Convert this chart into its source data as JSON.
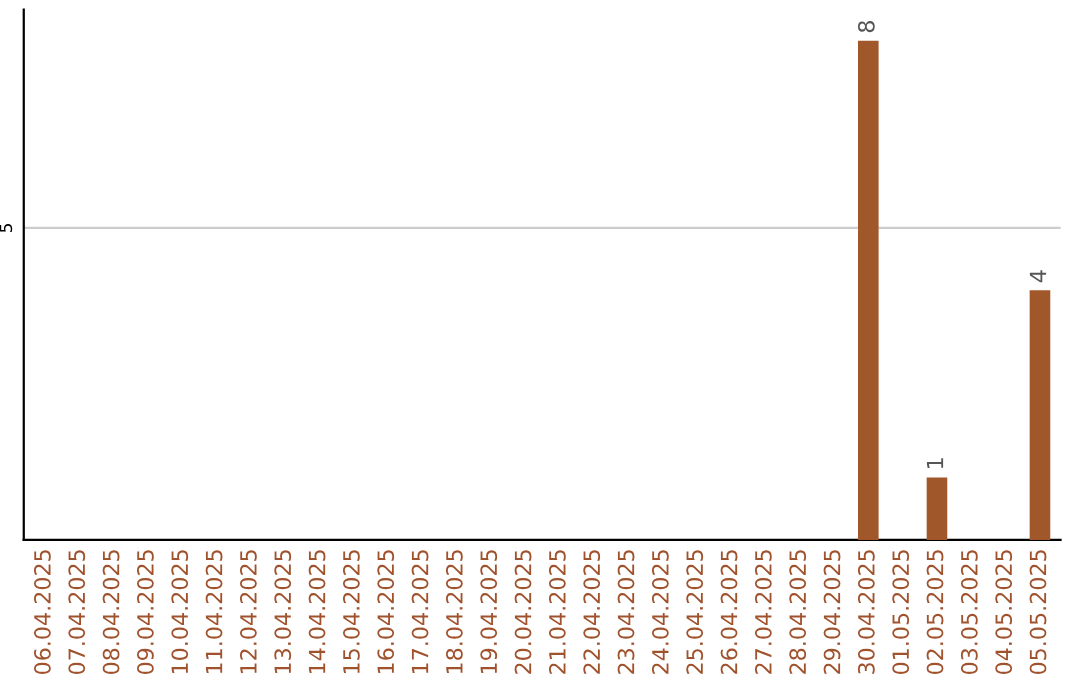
{
  "chart_data": {
    "type": "bar",
    "categories": [
      "06.04.2025",
      "07.04.2025",
      "08.04.2025",
      "09.04.2025",
      "10.04.2025",
      "11.04.2025",
      "12.04.2025",
      "13.04.2025",
      "14.04.2025",
      "15.04.2025",
      "16.04.2025",
      "17.04.2025",
      "18.04.2025",
      "19.04.2025",
      "20.04.2025",
      "21.04.2025",
      "22.04.2025",
      "23.04.2025",
      "24.04.2025",
      "25.04.2025",
      "26.04.2025",
      "27.04.2025",
      "28.04.2025",
      "29.04.2025",
      "30.04.2025",
      "01.05.2025",
      "02.05.2025",
      "03.05.2025",
      "04.05.2025",
      "05.05.2025"
    ],
    "values": [
      null,
      null,
      null,
      null,
      null,
      null,
      null,
      null,
      null,
      null,
      null,
      null,
      null,
      null,
      null,
      null,
      null,
      null,
      null,
      null,
      null,
      null,
      null,
      null,
      8,
      null,
      1,
      null,
      null,
      4
    ],
    "color": "#a0572a",
    "ylim": [
      0,
      8.5
    ],
    "yticks": [
      5
    ],
    "grid": "y",
    "data_labels": true
  }
}
